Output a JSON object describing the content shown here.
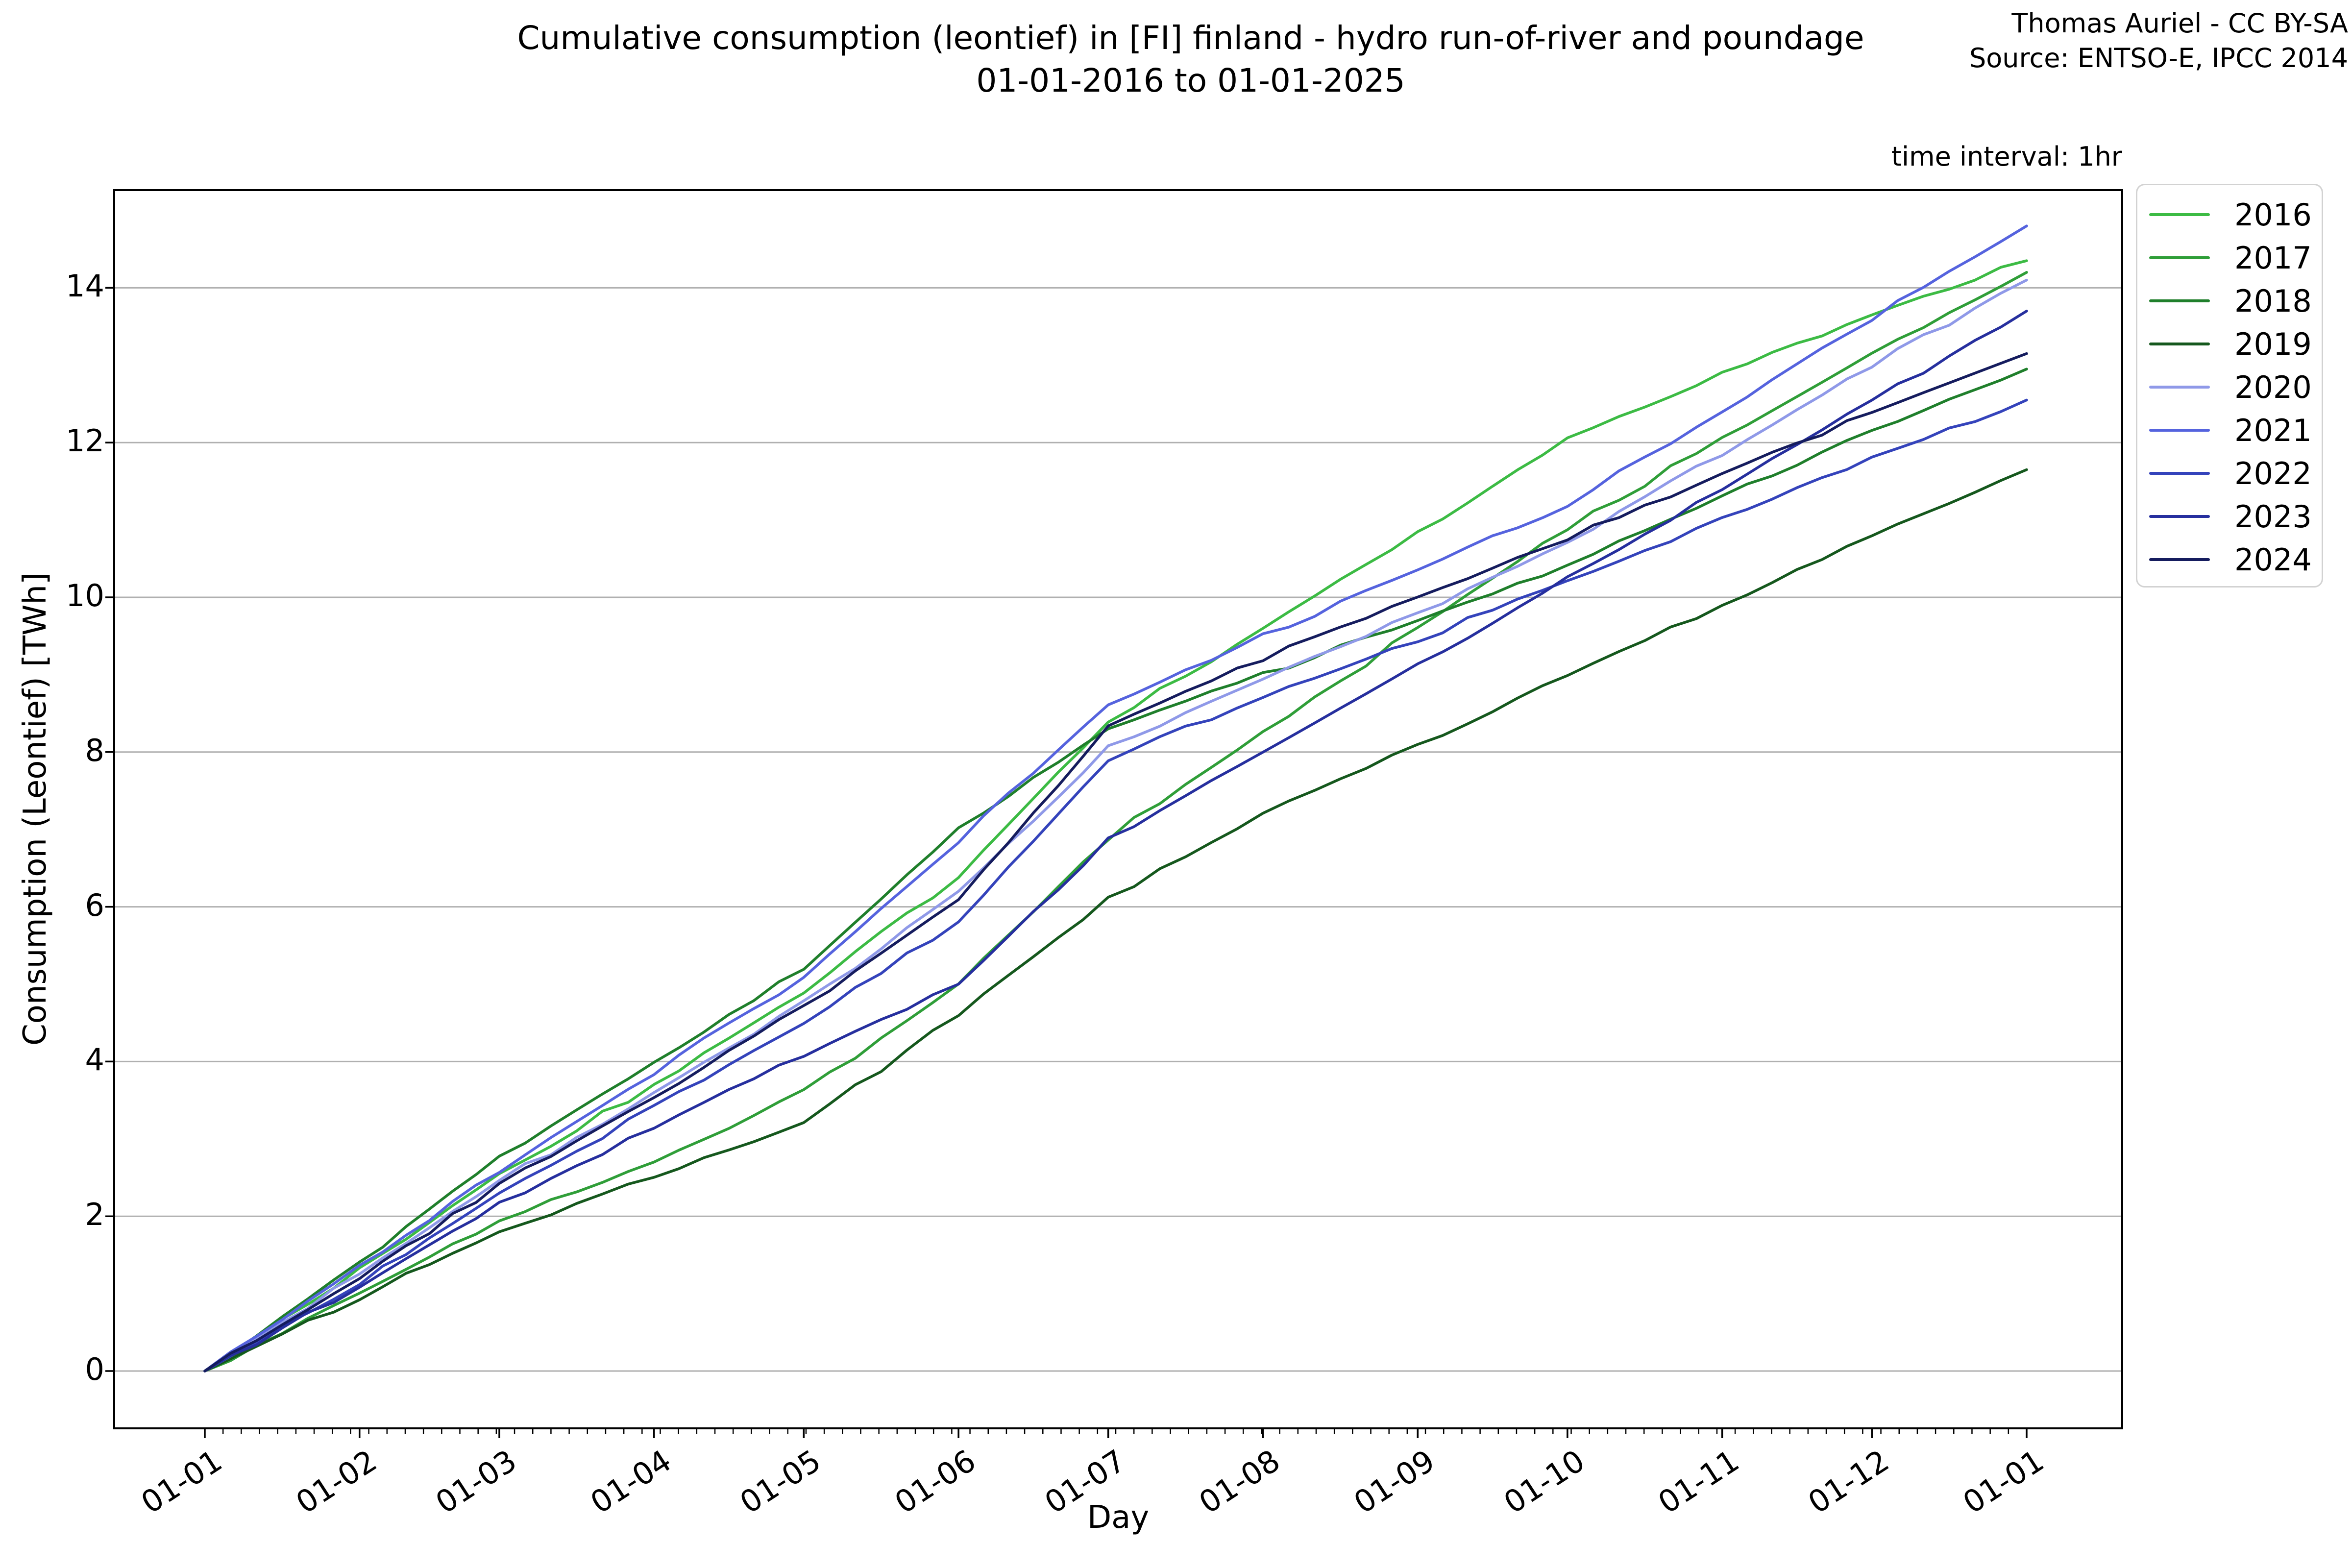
{
  "figure": {
    "title_line1": "Cumulative consumption (leontief) in [FI] finland - hydro run-of-river and poundage",
    "title_line2": "01-01-2016 to 01-01-2025",
    "credit_line1": "Thomas Auriel - CC BY-SA",
    "credit_line2": "Source: ENTSO-E, IPCC 2014",
    "note_right": "time interval: 1hr"
  },
  "chart_data": {
    "type": "line",
    "title": "Cumulative consumption (leontief) in [FI] finland - hydro run-of-river and poundage 01-01-2016 to 01-01-2025",
    "xlabel": "Day",
    "ylabel": "Consumption (Leontief) [TWh]",
    "x_tick_labels": [
      "01-01",
      "01-02",
      "01-03",
      "01-04",
      "01-05",
      "01-06",
      "01-07",
      "01-08",
      "01-09",
      "01-10",
      "01-11",
      "01-12",
      "01-01"
    ],
    "x_tick_day_offsets": [
      0,
      31,
      59,
      90,
      120,
      151,
      181,
      212,
      243,
      273,
      304,
      334,
      365
    ],
    "y_ticks": [
      0,
      2,
      4,
      6,
      8,
      10,
      12,
      14
    ],
    "ylim": [
      -0.7,
      15.3
    ],
    "xlim_days": [
      -18.2,
      384.2
    ],
    "grid": "horizontal-only",
    "grid_color": "#b0b0b0",
    "spine_color": "#000000",
    "legend_position": "outside-upper-right",
    "legend_entries": [
      "2016",
      "2017",
      "2018",
      "2019",
      "2020",
      "2021",
      "2022",
      "2023",
      "2024"
    ],
    "series": [
      {
        "name": "2016",
        "color": "#3cbb44",
        "monthly_values_twh": [
          0,
          1.3,
          2.55,
          3.7,
          4.9,
          6.4,
          8.4,
          9.6,
          10.85,
          12.05,
          12.9,
          13.65,
          14.35
        ]
      },
      {
        "name": "2017",
        "color": "#2f9e38",
        "monthly_values_twh": [
          0,
          1.0,
          1.95,
          2.7,
          3.6,
          5.0,
          6.9,
          8.25,
          9.6,
          10.9,
          12.05,
          13.15,
          14.2
        ]
      },
      {
        "name": "2018",
        "color": "#1f7f2b",
        "monthly_values_twh": [
          0,
          1.4,
          2.75,
          4.0,
          5.2,
          7.0,
          8.3,
          9.0,
          9.7,
          10.4,
          11.3,
          12.15,
          12.95
        ]
      },
      {
        "name": "2019",
        "color": "#15581d",
        "monthly_values_twh": [
          0,
          0.95,
          1.8,
          2.5,
          3.2,
          4.6,
          6.1,
          7.2,
          8.1,
          9.0,
          9.9,
          10.8,
          11.65
        ]
      },
      {
        "name": "2020",
        "color": "#8f99e8",
        "monthly_values_twh": [
          0,
          1.25,
          2.45,
          3.6,
          4.75,
          6.2,
          8.05,
          8.95,
          9.8,
          10.7,
          11.85,
          13.0,
          14.1
        ]
      },
      {
        "name": "2021",
        "color": "#5563de",
        "monthly_values_twh": [
          0,
          1.35,
          2.6,
          3.85,
          5.1,
          6.85,
          8.6,
          9.5,
          10.35,
          11.2,
          12.4,
          13.6,
          14.8
        ]
      },
      {
        "name": "2022",
        "color": "#3443bb",
        "monthly_values_twh": [
          0,
          1.15,
          2.3,
          3.4,
          4.5,
          5.8,
          7.9,
          8.7,
          9.45,
          10.2,
          11.0,
          11.8,
          12.55
        ]
      },
      {
        "name": "2023",
        "color": "#262f9e",
        "monthly_values_twh": [
          0,
          1.1,
          2.15,
          3.15,
          4.1,
          5.0,
          6.85,
          8.0,
          9.1,
          10.25,
          11.4,
          12.55,
          13.7
        ]
      },
      {
        "name": "2024",
        "color": "#151c5e",
        "monthly_values_twh": [
          0,
          1.2,
          2.4,
          3.55,
          4.7,
          6.1,
          8.35,
          9.2,
          10.0,
          10.75,
          11.6,
          12.4,
          13.15
        ]
      }
    ]
  }
}
